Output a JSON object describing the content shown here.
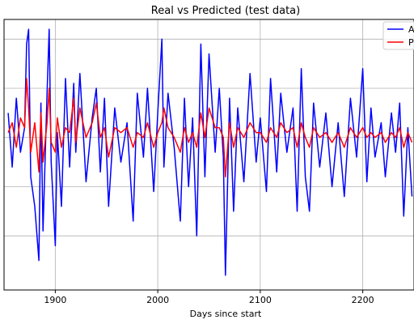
{
  "chart_data": {
    "type": "line",
    "title": "Real vs Predicted (test data)",
    "xlabel": "Days since start",
    "ylabel": "",
    "xlim": [
      1850,
      2250
    ],
    "ylim": [
      -3.1,
      2.4
    ],
    "x_ticks": [
      1900,
      2000,
      2100,
      2200
    ],
    "x_tick_labels": [
      "1900",
      "2000",
      "2100",
      "2200"
    ],
    "y_gridlines": [
      -2,
      -1,
      0,
      1,
      2
    ],
    "grid": true,
    "legend_position": "top-right",
    "series": [
      {
        "name": "A",
        "color": "#0000ff",
        "x": [
          1854,
          1858,
          1862,
          1866,
          1870,
          1872,
          1874,
          1876,
          1880,
          1884,
          1886,
          1888,
          1892,
          1894,
          1896,
          1900,
          1902,
          1906,
          1910,
          1914,
          1918,
          1920,
          1924,
          1930,
          1936,
          1940,
          1944,
          1948,
          1952,
          1958,
          1964,
          1970,
          1976,
          1980,
          1986,
          1990,
          1996,
          2000,
          2004,
          2006,
          2010,
          2016,
          2022,
          2026,
          2030,
          2034,
          2038,
          2042,
          2046,
          2050,
          2056,
          2060,
          2064,
          2066,
          2070,
          2074,
          2078,
          2084,
          2090,
          2096,
          2100,
          2106,
          2110,
          2116,
          2120,
          2126,
          2132,
          2136,
          2140,
          2144,
          2148,
          2152,
          2158,
          2164,
          2170,
          2176,
          2182,
          2188,
          2194,
          2200,
          2204,
          2208,
          2212,
          2218,
          2222,
          2228,
          2232,
          2236,
          2240,
          2244,
          2248
        ],
        "y": [
          0.5,
          -0.6,
          0.8,
          -0.3,
          0.2,
          1.9,
          2.2,
          -0.8,
          -1.4,
          -2.5,
          0.7,
          -1.9,
          0.9,
          2.2,
          -0.5,
          -2.2,
          0.1,
          -1.4,
          1.2,
          -0.6,
          1.1,
          -0.3,
          1.3,
          -0.9,
          0.4,
          1.0,
          -0.7,
          0.8,
          -1.4,
          0.6,
          -0.5,
          0.3,
          -1.7,
          0.9,
          -0.4,
          1.0,
          -1.1,
          0.5,
          2.0,
          -0.6,
          0.9,
          -0.2,
          -1.7,
          0.8,
          -1.0,
          0.4,
          -2.0,
          1.9,
          -0.8,
          1.7,
          -0.3,
          1.0,
          -0.4,
          -2.8,
          0.8,
          -1.5,
          0.6,
          -0.9,
          1.3,
          -0.5,
          0.4,
          -1.1,
          1.2,
          -0.7,
          0.9,
          -0.3,
          0.6,
          -1.5,
          1.4,
          -0.8,
          -1.5,
          0.7,
          -0.6,
          0.5,
          -1.0,
          0.3,
          -1.2,
          0.8,
          -0.4,
          1.4,
          -0.9,
          0.6,
          -0.4,
          0.3,
          -0.8,
          0.5,
          -0.3,
          0.7,
          -1.6,
          0.2,
          -1.2
        ]
      },
      {
        "name": "P",
        "color": "#ff0000",
        "x": [
          1854,
          1858,
          1862,
          1866,
          1870,
          1872,
          1874,
          1876,
          1880,
          1884,
          1886,
          1888,
          1892,
          1894,
          1896,
          1900,
          1902,
          1906,
          1910,
          1914,
          1918,
          1920,
          1924,
          1930,
          1936,
          1940,
          1944,
          1948,
          1952,
          1958,
          1964,
          1970,
          1976,
          1980,
          1986,
          1990,
          1996,
          2000,
          2004,
          2006,
          2010,
          2016,
          2022,
          2026,
          2030,
          2034,
          2038,
          2042,
          2046,
          2050,
          2056,
          2060,
          2064,
          2066,
          2070,
          2074,
          2078,
          2084,
          2090,
          2096,
          2100,
          2106,
          2110,
          2116,
          2120,
          2126,
          2132,
          2136,
          2140,
          2144,
          2148,
          2152,
          2158,
          2164,
          2170,
          2176,
          2182,
          2188,
          2194,
          2200,
          2204,
          2208,
          2212,
          2218,
          2222,
          2228,
          2232,
          2236,
          2240,
          2244,
          2248
        ],
        "y": [
          0.1,
          0.3,
          -0.2,
          0.4,
          0.2,
          1.2,
          0.6,
          -0.3,
          0.3,
          -0.7,
          0.5,
          -0.5,
          0.3,
          1.0,
          -0.1,
          -0.3,
          0.4,
          -0.2,
          0.2,
          0.1,
          0.8,
          -0.1,
          0.6,
          0.0,
          0.3,
          0.7,
          0.0,
          0.2,
          -0.4,
          0.2,
          0.1,
          0.2,
          -0.2,
          0.1,
          0.0,
          0.3,
          -0.2,
          0.1,
          0.3,
          0.6,
          0.2,
          0.0,
          -0.3,
          0.2,
          -0.1,
          0.1,
          -0.2,
          0.5,
          0.0,
          0.6,
          0.2,
          0.2,
          0.0,
          -0.8,
          0.3,
          -0.2,
          0.2,
          0.0,
          0.3,
          0.1,
          0.1,
          -0.1,
          0.2,
          0.0,
          0.3,
          0.1,
          0.2,
          -0.2,
          0.3,
          0.0,
          -0.2,
          0.2,
          0.0,
          0.1,
          -0.1,
          0.1,
          -0.2,
          0.2,
          0.0,
          0.2,
          0.0,
          0.1,
          0.0,
          0.1,
          -0.1,
          0.1,
          0.0,
          0.2,
          -0.2,
          0.1,
          -0.1
        ]
      }
    ]
  }
}
